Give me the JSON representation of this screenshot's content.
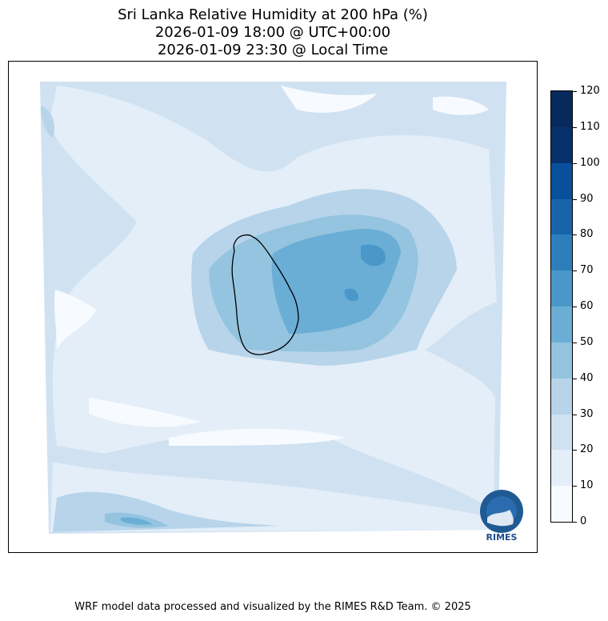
{
  "title": {
    "line1": "Sri Lanka Relative Humidity at 200 hPa (%)",
    "line2": "2026-01-09 18:00 @ UTC+00:00",
    "line3": "2026-01-09 23:30 @ Local Time"
  },
  "colorbar": {
    "levels": [
      "0",
      "10",
      "20",
      "30",
      "40",
      "50",
      "60",
      "70",
      "80",
      "90",
      "100",
      "110",
      "120"
    ],
    "colors": [
      "#f7fbff",
      "#e3eef8",
      "#d0e1f2",
      "#b7d4ea",
      "#94c4df",
      "#6aaed6",
      "#4a98c9",
      "#2e7ebc",
      "#1764ab",
      "#08509b",
      "#08306b",
      "#062a5c"
    ]
  },
  "logo": {
    "text": "RIMES",
    "colors": {
      "ring": "#1f5a93",
      "fill": "#2b6cb0"
    }
  },
  "footer": "WRF model data processed and visualized by the RIMES R&D Team. © 2025"
}
